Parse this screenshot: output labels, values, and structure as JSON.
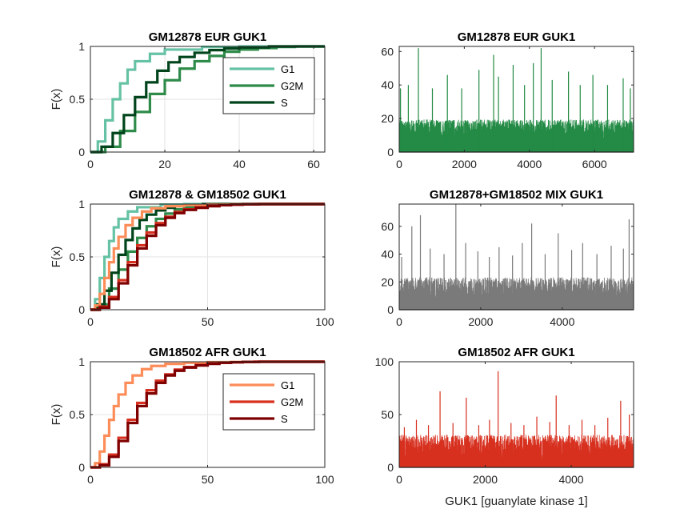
{
  "chart_data": [
    {
      "id": "p1",
      "type": "line",
      "subtype": "ecdf",
      "title": "GM12878 EUR GUK1",
      "xlabel": "",
      "ylabel": "F(x)",
      "xlim": [
        0,
        63
      ],
      "ylim": [
        0,
        1
      ],
      "xticks": [
        0,
        20,
        40,
        60
      ],
      "yticks": [
        0,
        0.5,
        1
      ],
      "grid": true,
      "legend": "top-right",
      "series": [
        {
          "name": "G1",
          "color": "#66c2a4",
          "x": [
            0,
            2,
            4,
            6,
            8,
            10,
            12,
            16,
            20,
            30,
            40,
            55
          ],
          "y": [
            0,
            0.1,
            0.3,
            0.5,
            0.65,
            0.78,
            0.86,
            0.93,
            0.97,
            0.995,
            1,
            1
          ]
        },
        {
          "name": "G2M",
          "color": "#2e8b4a",
          "x": [
            0,
            4,
            8,
            12,
            16,
            20,
            24,
            28,
            32,
            36,
            40,
            45,
            50,
            55,
            63
          ],
          "y": [
            0,
            0.05,
            0.2,
            0.38,
            0.55,
            0.68,
            0.79,
            0.86,
            0.91,
            0.95,
            0.97,
            0.985,
            0.995,
            1,
            1
          ]
        },
        {
          "name": "S",
          "color": "#00441b",
          "x": [
            0,
            3,
            6,
            9,
            12,
            15,
            18,
            21,
            24,
            28,
            32,
            36,
            40,
            48,
            55
          ],
          "y": [
            0,
            0.05,
            0.18,
            0.35,
            0.52,
            0.66,
            0.77,
            0.85,
            0.9,
            0.94,
            0.965,
            0.98,
            0.99,
            1,
            1
          ]
        }
      ]
    },
    {
      "id": "p2",
      "type": "bar",
      "subtype": "spikes",
      "title": "GM12878 EUR GUK1",
      "xlabel": "",
      "ylabel": "",
      "xlim": [
        0,
        7200
      ],
      "ylim": [
        0,
        63
      ],
      "xticks": [
        0,
        2000,
        4000,
        6000
      ],
      "yticks": [
        0,
        20,
        40,
        60
      ],
      "grid": false,
      "color": "#238b45",
      "n_points": 7200,
      "peaks": [
        [
          40,
          38
        ],
        [
          280,
          40
        ],
        [
          590,
          62
        ],
        [
          1020,
          38
        ],
        [
          1480,
          46
        ],
        [
          1920,
          38
        ],
        [
          2450,
          49
        ],
        [
          2900,
          58
        ],
        [
          3050,
          45
        ],
        [
          3500,
          52
        ],
        [
          3850,
          40
        ],
        [
          4120,
          53
        ],
        [
          4360,
          62
        ],
        [
          4700,
          43
        ],
        [
          5200,
          48
        ],
        [
          5560,
          40
        ],
        [
          5950,
          46
        ],
        [
          6400,
          40
        ],
        [
          6880,
          44
        ],
        [
          7100,
          38
        ]
      ]
    },
    {
      "id": "p3",
      "type": "line",
      "subtype": "ecdf",
      "title": "GM12878 & GM18502 GUK1",
      "xlabel": "",
      "ylabel": "F(x)",
      "xlim": [
        0,
        100
      ],
      "ylim": [
        0,
        1
      ],
      "xticks": [
        0,
        50,
        100
      ],
      "yticks": [
        0,
        0.5,
        1
      ],
      "grid": true,
      "legend": "none",
      "series": [
        {
          "name": "",
          "color": "#66c2a4",
          "x": [
            0,
            2,
            4,
            6,
            8,
            10,
            12,
            16,
            20,
            30,
            40,
            55
          ],
          "y": [
            0,
            0.1,
            0.3,
            0.5,
            0.65,
            0.78,
            0.86,
            0.93,
            0.97,
            0.995,
            1,
            1
          ]
        },
        {
          "name": "",
          "color": "#2e8b4a",
          "x": [
            0,
            4,
            8,
            12,
            16,
            20,
            24,
            28,
            32,
            36,
            40,
            45,
            50,
            55,
            63
          ],
          "y": [
            0,
            0.05,
            0.2,
            0.38,
            0.55,
            0.68,
            0.79,
            0.86,
            0.91,
            0.95,
            0.97,
            0.985,
            0.995,
            1,
            1
          ]
        },
        {
          "name": "",
          "color": "#00441b",
          "x": [
            0,
            3,
            6,
            9,
            12,
            15,
            18,
            21,
            24,
            28,
            32,
            36,
            40,
            48,
            55
          ],
          "y": [
            0,
            0.05,
            0.18,
            0.35,
            0.52,
            0.66,
            0.77,
            0.85,
            0.9,
            0.94,
            0.965,
            0.98,
            0.99,
            1,
            1
          ]
        },
        {
          "name": "",
          "color": "#fc8d59",
          "x": [
            0,
            2,
            4,
            6,
            8,
            10,
            12,
            15,
            18,
            22,
            26,
            32,
            40,
            50,
            60,
            70,
            80,
            91
          ],
          "y": [
            0,
            0.04,
            0.15,
            0.3,
            0.45,
            0.58,
            0.69,
            0.8,
            0.87,
            0.93,
            0.96,
            0.98,
            0.99,
            0.996,
            0.998,
            1,
            1,
            1
          ]
        },
        {
          "name": "",
          "color": "#d7301f",
          "x": [
            0,
            4,
            8,
            12,
            16,
            20,
            24,
            28,
            32,
            36,
            40,
            45,
            50,
            55,
            60,
            65,
            70,
            78
          ],
          "y": [
            0,
            0.03,
            0.12,
            0.28,
            0.45,
            0.61,
            0.73,
            0.82,
            0.88,
            0.925,
            0.95,
            0.97,
            0.983,
            0.99,
            0.995,
            0.998,
            1,
            1
          ]
        },
        {
          "name": "",
          "color": "#7f0000",
          "x": [
            0,
            4,
            8,
            12,
            16,
            20,
            24,
            28,
            32,
            36,
            40,
            45,
            50,
            55,
            60,
            65,
            72
          ],
          "y": [
            0,
            0.02,
            0.1,
            0.25,
            0.42,
            0.58,
            0.7,
            0.8,
            0.87,
            0.915,
            0.945,
            0.965,
            0.98,
            0.99,
            0.995,
            0.998,
            1
          ]
        }
      ]
    },
    {
      "id": "p4",
      "type": "bar",
      "subtype": "spikes",
      "title": "GM12878+GM18502 MIX GUK1",
      "xlabel": "",
      "ylabel": "",
      "xlim": [
        0,
        5750
      ],
      "ylim": [
        0,
        76
      ],
      "xticks": [
        0,
        2000,
        4000
      ],
      "yticks": [
        0,
        20,
        40,
        60
      ],
      "grid": false,
      "color": "#7a7a7a",
      "n_points": 5750,
      "peaks": [
        [
          60,
          38
        ],
        [
          310,
          60
        ],
        [
          520,
          68
        ],
        [
          760,
          44
        ],
        [
          1100,
          40
        ],
        [
          1390,
          76
        ],
        [
          1630,
          48
        ],
        [
          1930,
          42
        ],
        [
          2210,
          38
        ],
        [
          2450,
          45
        ],
        [
          2780,
          39
        ],
        [
          3020,
          48
        ],
        [
          3250,
          62
        ],
        [
          3580,
          40
        ],
        [
          3900,
          55
        ],
        [
          4230,
          43
        ],
        [
          4500,
          48
        ],
        [
          4850,
          40
        ],
        [
          5200,
          46
        ],
        [
          5500,
          44
        ],
        [
          5640,
          65
        ]
      ]
    },
    {
      "id": "p5",
      "type": "line",
      "subtype": "ecdf",
      "title": "GM18502 AFR GUK1",
      "xlabel": "",
      "ylabel": "F(x)",
      "xlim": [
        0,
        100
      ],
      "ylim": [
        0,
        1
      ],
      "xticks": [
        0,
        50,
        100
      ],
      "yticks": [
        0,
        0.5,
        1
      ],
      "grid": true,
      "legend": "top-right",
      "series": [
        {
          "name": "G1",
          "color": "#fc8d59",
          "x": [
            0,
            2,
            4,
            6,
            8,
            10,
            12,
            15,
            18,
            22,
            26,
            32,
            40,
            50,
            60,
            70,
            80,
            91
          ],
          "y": [
            0,
            0.04,
            0.15,
            0.3,
            0.45,
            0.58,
            0.69,
            0.8,
            0.87,
            0.93,
            0.96,
            0.98,
            0.99,
            0.996,
            0.998,
            1,
            1,
            1
          ]
        },
        {
          "name": "G2M",
          "color": "#d7301f",
          "x": [
            0,
            4,
            8,
            12,
            16,
            20,
            24,
            28,
            32,
            36,
            40,
            45,
            50,
            55,
            60,
            65,
            70,
            78
          ],
          "y": [
            0,
            0.03,
            0.12,
            0.28,
            0.45,
            0.61,
            0.73,
            0.82,
            0.88,
            0.925,
            0.95,
            0.97,
            0.983,
            0.99,
            0.995,
            0.998,
            1,
            1
          ]
        },
        {
          "name": "S",
          "color": "#7f0000",
          "x": [
            0,
            4,
            8,
            12,
            16,
            20,
            24,
            28,
            32,
            36,
            40,
            45,
            50,
            55,
            60,
            65,
            72
          ],
          "y": [
            0,
            0.02,
            0.1,
            0.25,
            0.42,
            0.58,
            0.7,
            0.8,
            0.87,
            0.915,
            0.945,
            0.965,
            0.98,
            0.99,
            0.995,
            0.998,
            1
          ]
        }
      ]
    },
    {
      "id": "p6",
      "type": "bar",
      "subtype": "spikes",
      "title": "GM18502 AFR GUK1",
      "xlabel": "GUK1 [guanylate kinase 1]",
      "ylabel": "",
      "xlim": [
        0,
        5450
      ],
      "ylim": [
        0,
        100
      ],
      "xticks": [
        0,
        2000,
        4000
      ],
      "yticks": [
        0,
        50,
        100
      ],
      "grid": false,
      "color": "#d7301f",
      "n_points": 5450,
      "peaks": [
        [
          120,
          38
        ],
        [
          400,
          45
        ],
        [
          680,
          40
        ],
        [
          950,
          72
        ],
        [
          1250,
          42
        ],
        [
          1560,
          66
        ],
        [
          1850,
          40
        ],
        [
          2100,
          45
        ],
        [
          2300,
          91
        ],
        [
          2600,
          42
        ],
        [
          2900,
          40
        ],
        [
          3200,
          48
        ],
        [
          3500,
          43
        ],
        [
          3650,
          68
        ],
        [
          3950,
          40
        ],
        [
          4250,
          45
        ],
        [
          4550,
          40
        ],
        [
          4850,
          47
        ],
        [
          5150,
          63
        ],
        [
          5350,
          50
        ]
      ]
    }
  ]
}
